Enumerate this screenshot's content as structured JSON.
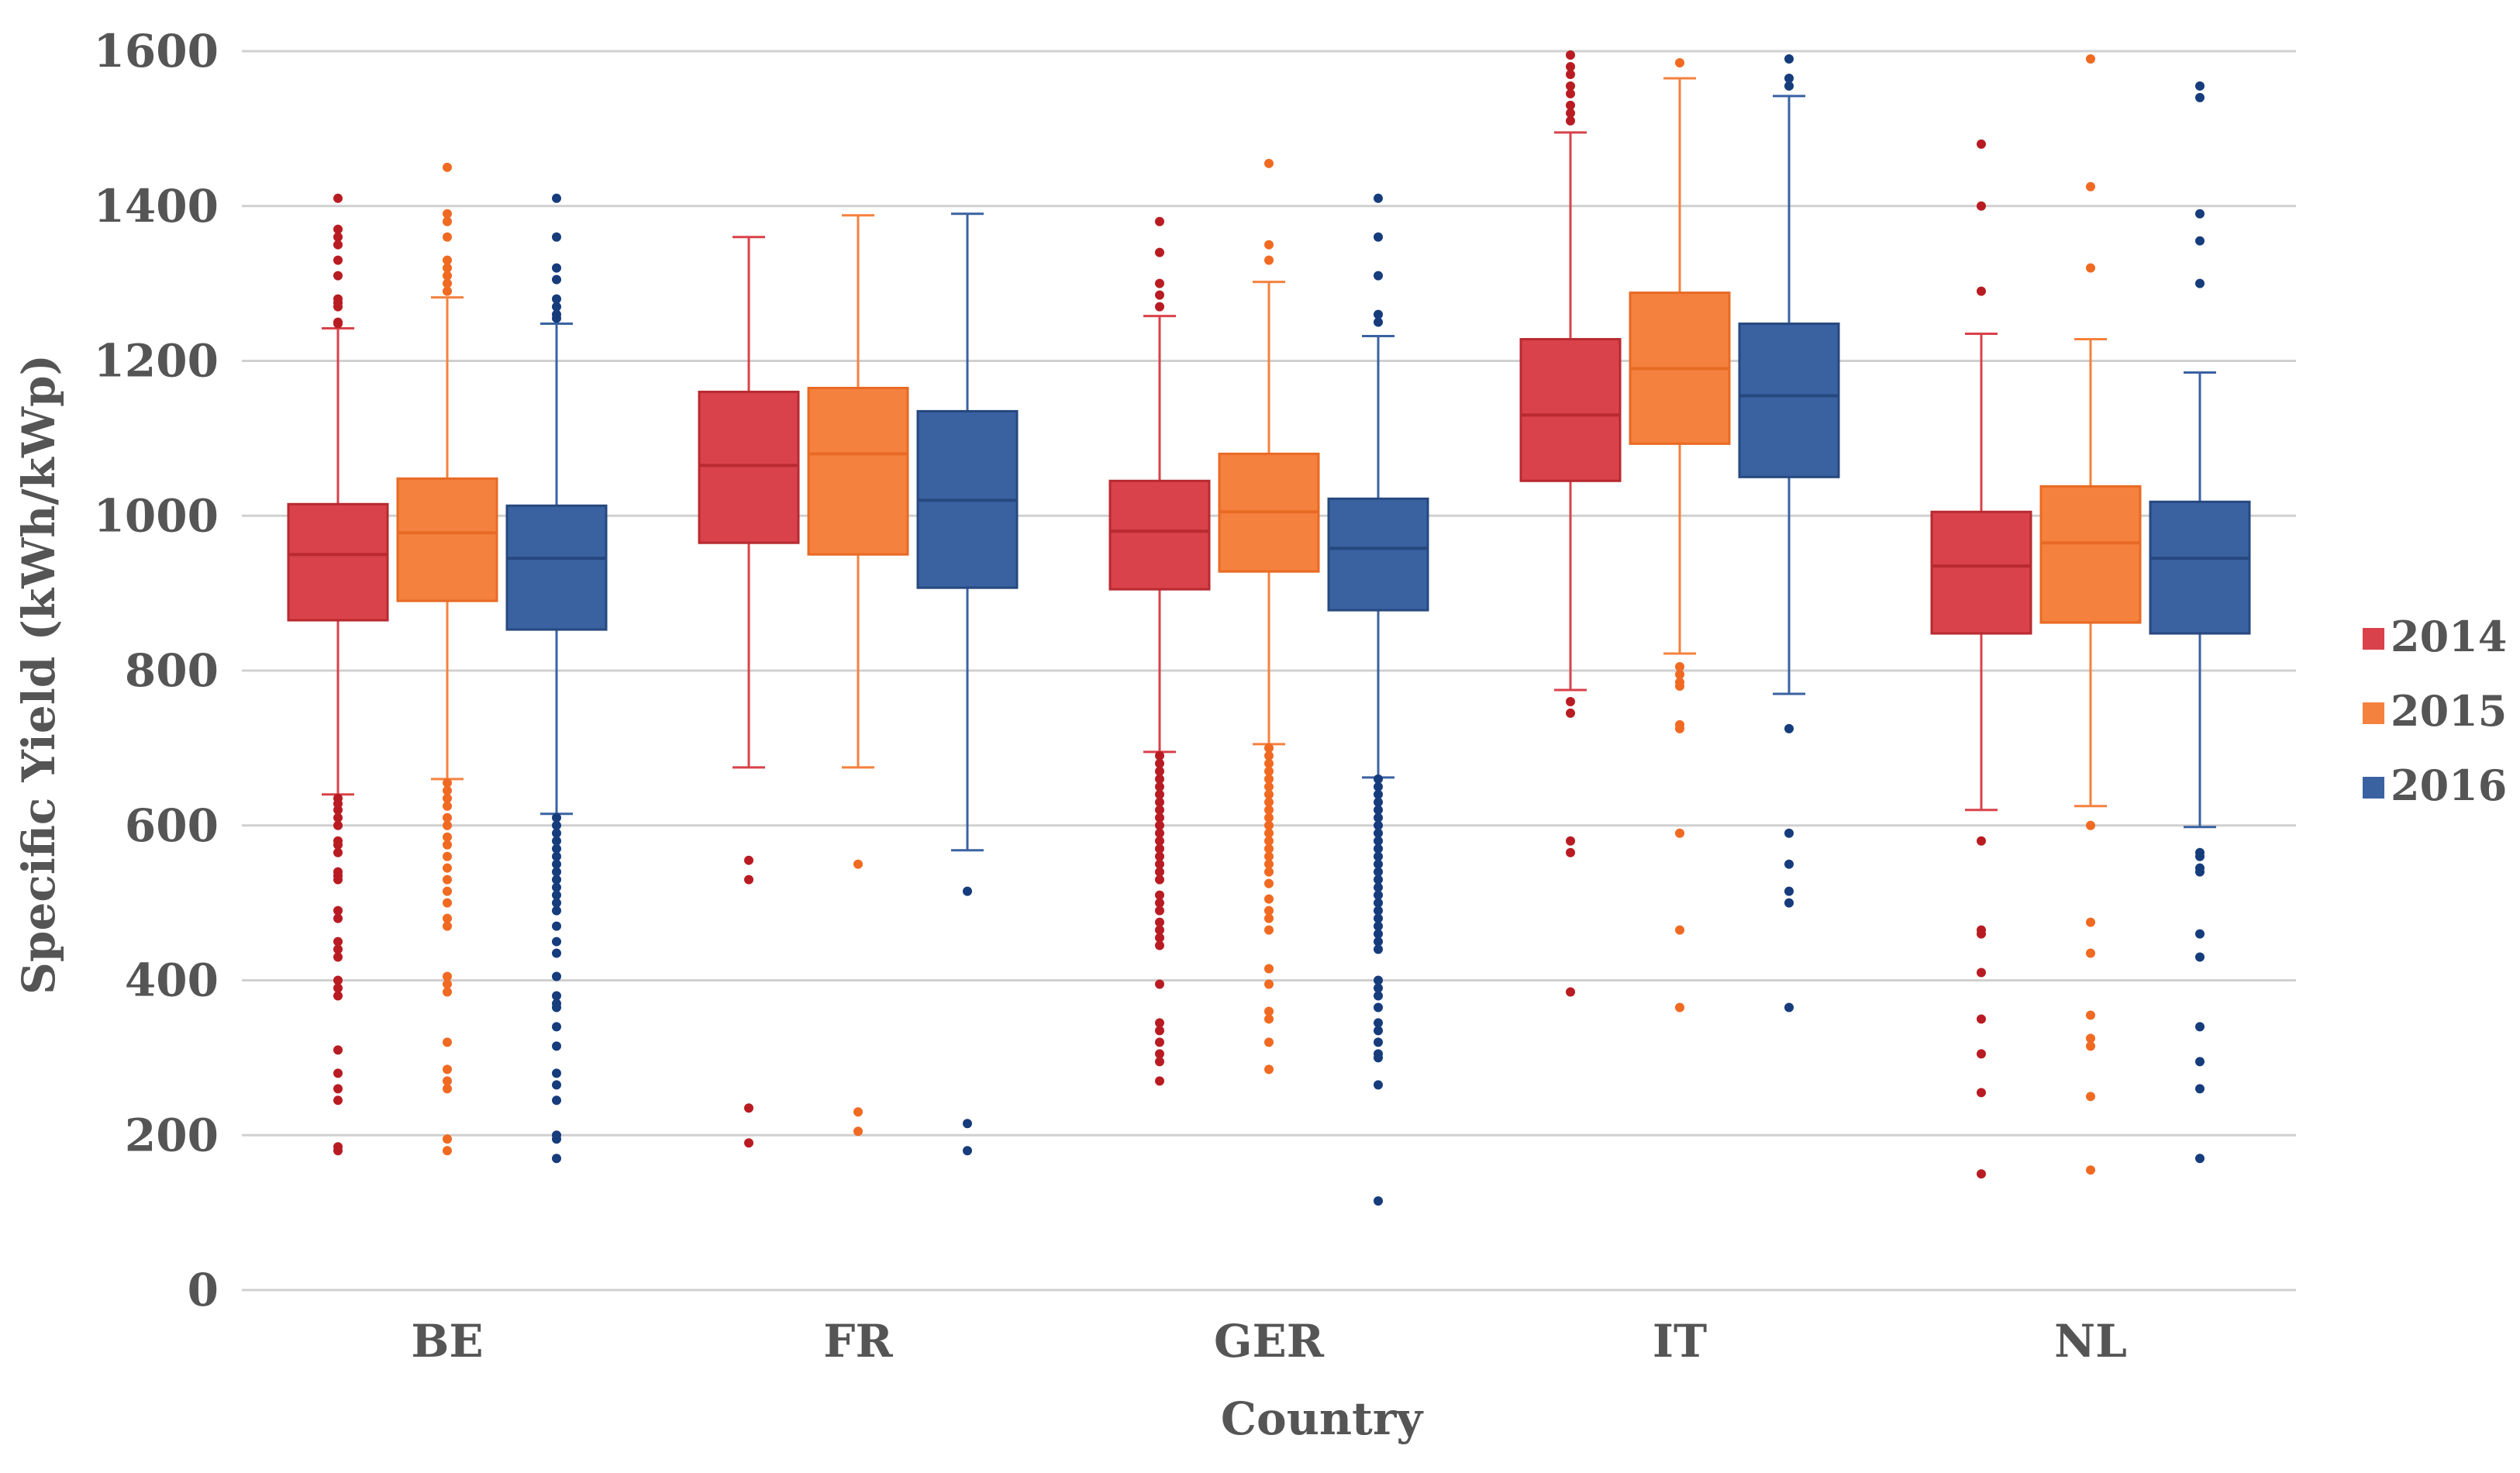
{
  "chart_data": {
    "type": "boxplot",
    "title": "",
    "xlabel": "Country",
    "ylabel": "Specific Yield (kWh/kWp)",
    "ylim": [
      0,
      1600
    ],
    "yticks": [
      0,
      200,
      400,
      600,
      800,
      1000,
      1200,
      1400,
      1600
    ],
    "grid": true,
    "legend_position": "right",
    "categories": [
      "BE",
      "FR",
      "GER",
      "IT",
      "NL"
    ],
    "series": [
      {
        "name": "2014",
        "color": "#d9424a",
        "median_color": "#b82a30",
        "outlier_color": "#b81c22",
        "boxes": [
          {
            "whisker_low": 640,
            "q1": 865,
            "median": 950,
            "q3": 1015,
            "whisker_high": 1242,
            "outliers": [
              1410,
              1370,
              1360,
              1350,
              1330,
              1310,
              1280,
              1275,
              1270,
              1250,
              1248,
              635,
              628,
              620,
              610,
              600,
              580,
              575,
              565,
              540,
              535,
              530,
              490,
              480,
              450,
              440,
              430,
              400,
              390,
              380,
              310,
              280,
              260,
              245,
              185,
              180
            ]
          },
          {
            "whisker_low": 675,
            "q1": 965,
            "median": 1065,
            "q3": 1160,
            "whisker_high": 1360,
            "outliers": [
              555,
              530,
              235,
              190
            ]
          },
          {
            "whisker_low": 695,
            "q1": 905,
            "median": 980,
            "q3": 1045,
            "whisker_high": 1258,
            "outliers": [
              1380,
              1340,
              1300,
              1285,
              1270,
              690,
              680,
              670,
              660,
              650,
              640,
              630,
              620,
              610,
              600,
              590,
              580,
              570,
              560,
              550,
              540,
              530,
              510,
              500,
              490,
              475,
              465,
              455,
              445,
              395,
              345,
              335,
              320,
              305,
              295,
              270
            ]
          },
          {
            "whisker_low": 775,
            "q1": 1045,
            "median": 1130,
            "q3": 1228,
            "whisker_high": 1495,
            "outliers": [
              1595,
              1580,
              1570,
              1555,
              1545,
              1530,
              1520,
              1510,
              760,
              745,
              580,
              565,
              385
            ]
          },
          {
            "whisker_low": 620,
            "q1": 848,
            "median": 935,
            "q3": 1005,
            "whisker_high": 1235,
            "outliers": [
              1480,
              1400,
              1290,
              580,
              465,
              460,
              410,
              350,
              305,
              255,
              150
            ]
          }
        ]
      },
      {
        "name": "2015",
        "color": "#f5813e",
        "median_color": "#e86a24",
        "outlier_color": "#f06a22",
        "boxes": [
          {
            "whisker_low": 660,
            "q1": 890,
            "median": 978,
            "q3": 1048,
            "whisker_high": 1282,
            "outliers": [
              1450,
              1390,
              1380,
              1360,
              1330,
              1320,
              1310,
              1300,
              1290,
              655,
              645,
              635,
              625,
              610,
              600,
              585,
              575,
              560,
              545,
              530,
              515,
              500,
              480,
              470,
              405,
              395,
              385,
              320,
              285,
              270,
              260,
              195,
              180
            ]
          },
          {
            "whisker_low": 675,
            "q1": 950,
            "median": 1080,
            "q3": 1165,
            "whisker_high": 1388,
            "outliers": [
              550,
              230,
              205
            ]
          },
          {
            "whisker_low": 705,
            "q1": 928,
            "median": 1005,
            "q3": 1080,
            "whisker_high": 1302,
            "outliers": [
              1455,
              1350,
              1330,
              700,
              690,
              680,
              670,
              660,
              650,
              640,
              630,
              620,
              610,
              600,
              590,
              580,
              570,
              560,
              550,
              540,
              525,
              505,
              490,
              480,
              465,
              415,
              395,
              360,
              350,
              320,
              285
            ]
          },
          {
            "whisker_low": 822,
            "q1": 1093,
            "median": 1190,
            "q3": 1288,
            "whisker_high": 1565,
            "outliers": [
              1585,
              805,
              795,
              785,
              780,
              730,
              725,
              590,
              465,
              365
            ]
          },
          {
            "whisker_low": 625,
            "q1": 862,
            "median": 965,
            "q3": 1038,
            "whisker_high": 1228,
            "outliers": [
              1590,
              1425,
              1320,
              600,
              475,
              435,
              355,
              325,
              315,
              250,
              155
            ]
          }
        ]
      },
      {
        "name": "2016",
        "color": "#3a62a1",
        "median_color": "#27487f",
        "outlier_color": "#163c7c",
        "boxes": [
          {
            "whisker_low": 615,
            "q1": 853,
            "median": 945,
            "q3": 1013,
            "whisker_high": 1248,
            "outliers": [
              1410,
              1360,
              1320,
              1305,
              1280,
              1270,
              1260,
              1255,
              610,
              600,
              590,
              580,
              570,
              560,
              550,
              540,
              530,
              520,
              510,
              500,
              490,
              470,
              450,
              435,
              405,
              380,
              370,
              365,
              340,
              315,
              280,
              265,
              245,
              200,
              195,
              170
            ]
          },
          {
            "whisker_low": 568,
            "q1": 907,
            "median": 1020,
            "q3": 1135,
            "whisker_high": 1390,
            "outliers": [
              515,
              215,
              180
            ]
          },
          {
            "whisker_low": 662,
            "q1": 878,
            "median": 958,
            "q3": 1022,
            "whisker_high": 1232,
            "outliers": [
              1410,
              1360,
              1310,
              1260,
              1250,
              660,
              650,
              640,
              630,
              620,
              610,
              600,
              590,
              580,
              570,
              560,
              550,
              540,
              530,
              520,
              510,
              500,
              490,
              480,
              470,
              460,
              450,
              440,
              400,
              390,
              380,
              365,
              345,
              335,
              320,
              305,
              300,
              265,
              115
            ]
          },
          {
            "whisker_low": 770,
            "q1": 1050,
            "median": 1155,
            "q3": 1248,
            "whisker_high": 1542,
            "outliers": [
              1590,
              1565,
              1555,
              725,
              590,
              550,
              515,
              500,
              365
            ]
          },
          {
            "whisker_low": 598,
            "q1": 848,
            "median": 945,
            "q3": 1018,
            "whisker_high": 1185,
            "outliers": [
              1555,
              1540,
              1390,
              1355,
              1300,
              565,
              560,
              545,
              540,
              460,
              430,
              340,
              295,
              260,
              170
            ]
          }
        ]
      }
    ]
  }
}
